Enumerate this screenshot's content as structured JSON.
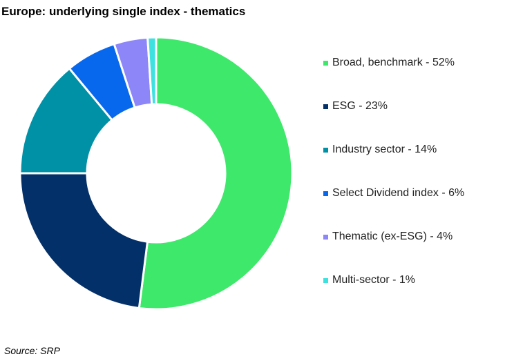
{
  "chart_data": {
    "type": "pie",
    "donut": true,
    "title": "Europe: underlying single index - thematics",
    "categories": [
      "Broad, benchmark",
      "ESG",
      "Industry sector",
      "Select Dividend index",
      "Thematic (ex-ESG)",
      "Multi-sector"
    ],
    "values": [
      52,
      23,
      14,
      6,
      4,
      1
    ],
    "unit": "%",
    "legend_labels": [
      "Broad, benchmark - 52%",
      "ESG - 23%",
      "Industry sector - 14%",
      "Select Dividend index - 6%",
      "Thematic (ex-ESG) - 4%",
      "Multi-sector - 1%"
    ],
    "colors": [
      "#3ee86a",
      "#043069",
      "#0191a7",
      "#0868ed",
      "#8c86f9",
      "#3de2e0"
    ],
    "legend_position": "right",
    "start": "12 o'clock",
    "direction": "clockwise",
    "source": "Source: SRP"
  }
}
